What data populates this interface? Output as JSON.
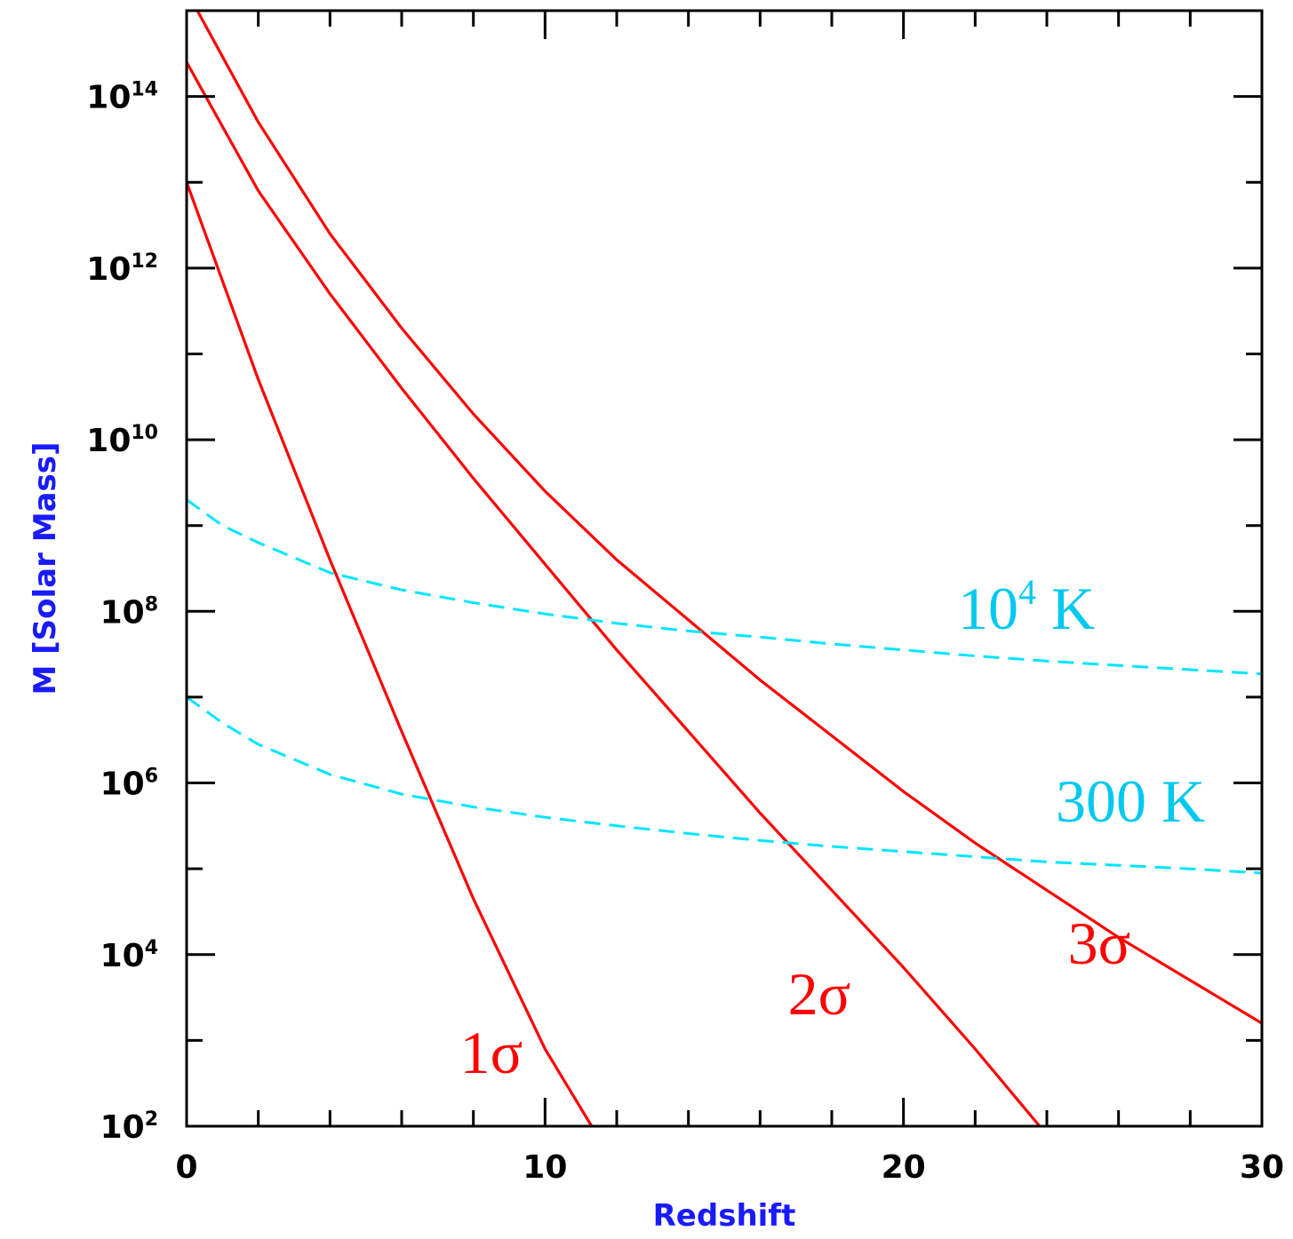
{
  "chart_data": {
    "type": "line",
    "title": "",
    "xlabel": "Redshift",
    "ylabel": "M [Solar Mass]",
    "xlim": [
      0,
      30
    ],
    "ylim_log10": [
      2,
      15
    ],
    "yscale": "log",
    "x_ticks": [
      "0",
      "10",
      "20",
      "30"
    ],
    "y_ticks": [
      {
        "base": "10",
        "exp": "2"
      },
      {
        "base": "10",
        "exp": "4"
      },
      {
        "base": "10",
        "exp": "6"
      },
      {
        "base": "10",
        "exp": "8"
      },
      {
        "base": "10",
        "exp": "10"
      },
      {
        "base": "10",
        "exp": "12"
      },
      {
        "base": "10",
        "exp": "14"
      }
    ],
    "grid": false,
    "colors": {
      "sigma": "#ff0000",
      "temperature": "#00e5ff",
      "axis_title": "#1a1aff",
      "temperature_label": "#00c8f0"
    },
    "series": [
      {
        "key": "s1",
        "label": "1σ",
        "style": "solid",
        "color": "#ff0000",
        "x": [
          0,
          2,
          4,
          6,
          8,
          10,
          11.3
        ],
        "y_log10": [
          13.0,
          10.7,
          8.6,
          6.6,
          4.65,
          2.9,
          2.0
        ]
      },
      {
        "key": "s2",
        "label": "2σ",
        "style": "solid",
        "color": "#ff0000",
        "x": [
          0,
          2,
          4,
          6,
          8,
          10,
          12,
          14,
          16,
          18,
          20,
          22,
          23.8
        ],
        "y_log10": [
          14.4,
          12.9,
          11.7,
          10.6,
          9.55,
          8.55,
          7.55,
          6.6,
          5.65,
          4.75,
          3.85,
          2.9,
          2.0
        ]
      },
      {
        "key": "s3",
        "label": "3σ",
        "style": "solid",
        "color": "#ff0000",
        "x": [
          0.3,
          2,
          4,
          6,
          8,
          10,
          12,
          14,
          16,
          18,
          20,
          22,
          24,
          26,
          28,
          30
        ],
        "y_log10": [
          15.0,
          13.7,
          12.4,
          11.3,
          10.3,
          9.4,
          8.6,
          7.9,
          7.2,
          6.55,
          5.9,
          5.3,
          4.75,
          4.2,
          3.7,
          3.2
        ]
      },
      {
        "key": "t4",
        "label_base": "10",
        "label_exp": "4",
        "label_unit": " K",
        "style": "dashed",
        "color": "#00e5ff",
        "x": [
          0,
          1,
          2,
          4,
          6,
          8,
          10,
          12,
          14,
          16,
          18,
          20,
          22,
          24,
          26,
          28,
          30
        ],
        "y_log10": [
          9.3,
          9.0,
          8.8,
          8.45,
          8.25,
          8.1,
          7.97,
          7.86,
          7.77,
          7.7,
          7.62,
          7.55,
          7.48,
          7.42,
          7.37,
          7.32,
          7.27
        ]
      },
      {
        "key": "t300",
        "label": "300 K",
        "style": "dashed",
        "color": "#00e5ff",
        "x": [
          0,
          1,
          2,
          4,
          6,
          8,
          10,
          12,
          14,
          16,
          18,
          20,
          22,
          24,
          26,
          28,
          30
        ],
        "y_log10": [
          7.0,
          6.7,
          6.45,
          6.1,
          5.87,
          5.72,
          5.6,
          5.5,
          5.41,
          5.33,
          5.26,
          5.2,
          5.14,
          5.08,
          5.04,
          5.0,
          4.95
        ]
      }
    ],
    "annotations": [
      {
        "key": "a1",
        "text": "1σ",
        "color": "#ff0000"
      },
      {
        "key": "a2",
        "text": "2σ",
        "color": "#ff0000"
      },
      {
        "key": "a3",
        "text": "3σ",
        "color": "#ff0000"
      },
      {
        "key": "a4",
        "base": "10",
        "exp": "4",
        "unit": " K",
        "color": "#00c8f0"
      },
      {
        "key": "a300",
        "text": "300 K",
        "color": "#00c8f0"
      }
    ]
  }
}
